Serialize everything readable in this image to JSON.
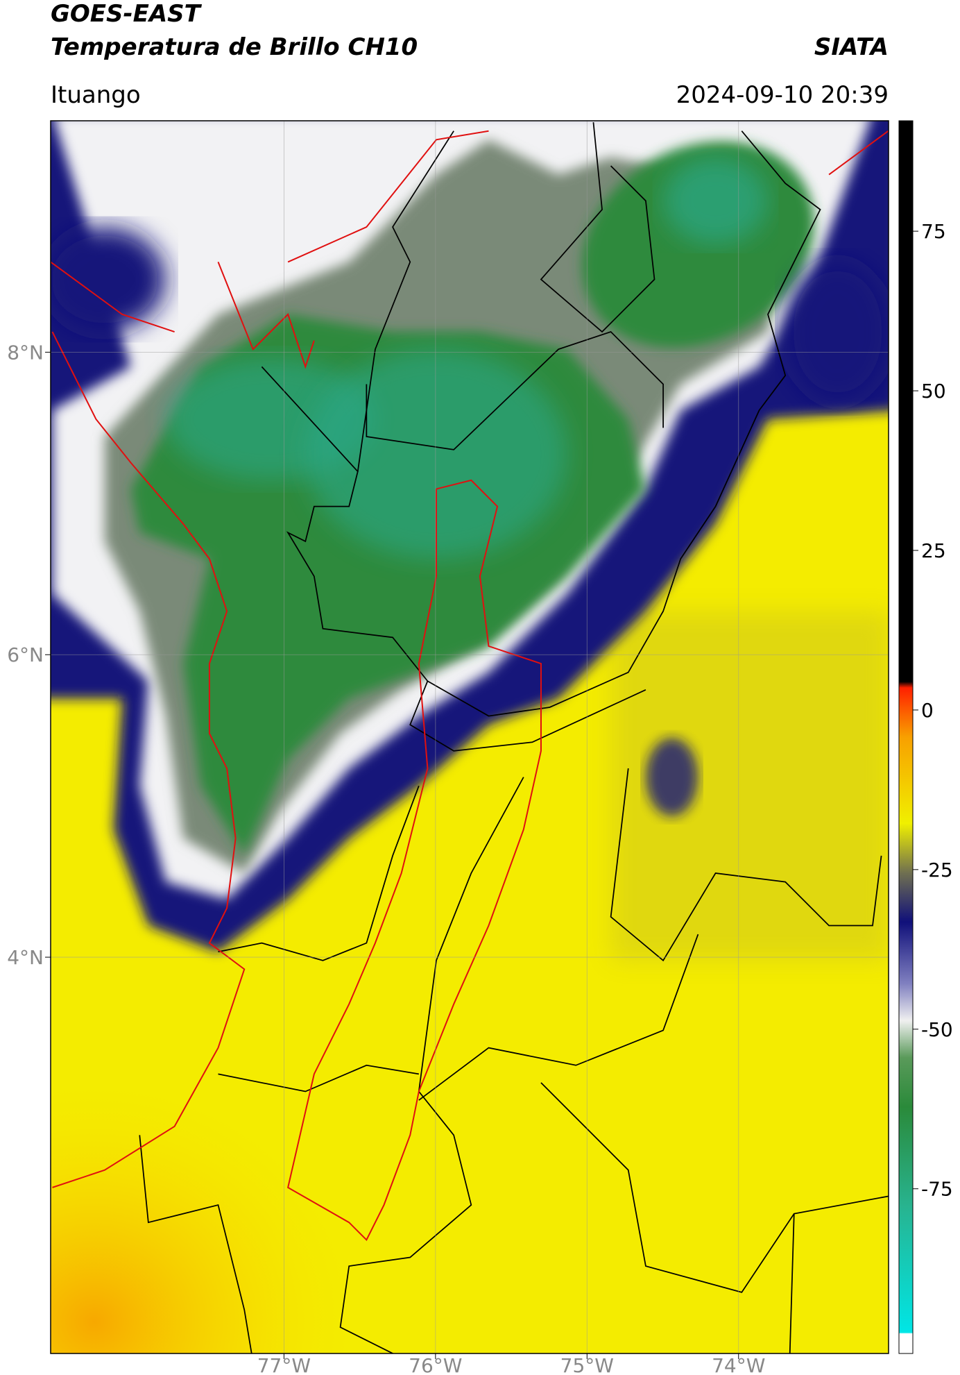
{
  "header": {
    "title": "GOES-EAST",
    "subtitle": "Temperatura de Brillo CH10",
    "brand": "SIATA",
    "location": "Ituango",
    "datetime": "2024-09-10 20:39"
  },
  "map": {
    "xlim": [
      -78.54,
      -73.01
    ],
    "ylim": [
      1.38,
      9.53
    ],
    "xticks": [
      {
        "value": -77,
        "label": "77°W"
      },
      {
        "value": -76,
        "label": "76°W"
      },
      {
        "value": -75,
        "label": "75°W"
      },
      {
        "value": -74,
        "label": "74°W"
      }
    ],
    "yticks": [
      {
        "value": 8,
        "label": "8°N"
      },
      {
        "value": 6,
        "label": "6°N"
      },
      {
        "value": 4,
        "label": "4°N"
      }
    ],
    "grid": true
  },
  "colorbar": {
    "ylim": [
      -100.8,
      92.3
    ],
    "yticks": [
      75,
      50,
      25,
      0,
      -25,
      -50,
      -75
    ]
  }
}
